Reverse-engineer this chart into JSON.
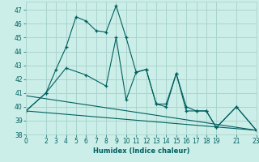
{
  "xlabel": "Humidex (Indice chaleur)",
  "bg_color": "#cceee8",
  "grid_color": "#aad4ce",
  "line_color": "#006060",
  "xlim": [
    0,
    23
  ],
  "ylim": [
    38,
    47.6
  ],
  "yticks": [
    38,
    39,
    40,
    41,
    42,
    43,
    44,
    45,
    46,
    47
  ],
  "xticks": [
    0,
    2,
    3,
    4,
    5,
    6,
    7,
    8,
    9,
    10,
    11,
    12,
    13,
    14,
    15,
    16,
    17,
    18,
    19,
    21,
    23
  ],
  "series1_x": [
    0,
    2,
    3,
    4,
    5,
    6,
    7,
    8,
    9,
    10,
    11,
    12,
    13,
    14,
    15,
    16,
    17,
    18,
    19,
    21,
    23
  ],
  "series1_y": [
    39.7,
    41.0,
    42.7,
    44.3,
    46.5,
    46.2,
    45.5,
    45.4,
    47.3,
    45.0,
    42.5,
    42.7,
    40.2,
    40.0,
    42.4,
    40.0,
    39.7,
    39.7,
    38.5,
    40.0,
    38.3
  ],
  "series2_x": [
    0,
    2,
    4,
    6,
    8,
    9,
    10,
    11,
    12,
    13,
    14,
    15,
    16,
    17,
    18,
    19,
    21,
    23
  ],
  "series2_y": [
    39.7,
    41.0,
    42.8,
    42.3,
    41.5,
    45.0,
    40.5,
    42.5,
    42.7,
    40.2,
    40.2,
    42.4,
    39.7,
    39.7,
    39.7,
    38.5,
    40.0,
    38.3
  ],
  "series3_x": [
    0,
    23
  ],
  "series3_y": [
    40.8,
    38.3
  ],
  "series4_x": [
    0,
    23
  ],
  "series4_y": [
    39.7,
    38.3
  ],
  "xlabel_fontsize": 6.0,
  "tick_fontsize": 5.5
}
